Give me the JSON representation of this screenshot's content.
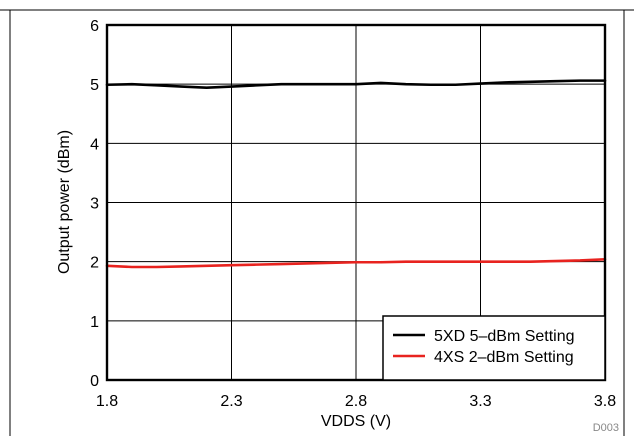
{
  "chart_data": {
    "type": "line",
    "title": "",
    "xlabel": "VDDS (V)",
    "ylabel": "Output power (dBm)",
    "xlim": [
      1.8,
      3.8
    ],
    "ylim": [
      0,
      6
    ],
    "x_ticks": [
      "1.8",
      "2.3",
      "2.8",
      "3.3",
      "3.8"
    ],
    "y_ticks": [
      "0",
      "1",
      "2",
      "3",
      "4",
      "5",
      "6"
    ],
    "grid": true,
    "legend_position": "bottom-right",
    "series": [
      {
        "name": "5XD 5–dBm Setting",
        "color": "#000000",
        "x": [
          1.8,
          1.9,
          2.0,
          2.1,
          2.2,
          2.3,
          2.4,
          2.5,
          2.6,
          2.7,
          2.8,
          2.9,
          3.0,
          3.1,
          3.2,
          3.3,
          3.4,
          3.5,
          3.6,
          3.7,
          3.8
        ],
        "y": [
          4.99,
          5.0,
          4.98,
          4.96,
          4.94,
          4.96,
          4.98,
          5.0,
          5.0,
          5.0,
          5.0,
          5.02,
          5.0,
          4.99,
          4.99,
          5.01,
          5.03,
          5.04,
          5.05,
          5.06,
          5.06
        ]
      },
      {
        "name": "4XS 2–dBm Setting",
        "color": "#e8231f",
        "x": [
          1.8,
          1.9,
          2.0,
          2.1,
          2.2,
          2.3,
          2.4,
          2.5,
          2.6,
          2.7,
          2.8,
          2.9,
          3.0,
          3.1,
          3.2,
          3.3,
          3.4,
          3.5,
          3.6,
          3.7,
          3.8
        ],
        "y": [
          1.93,
          1.91,
          1.91,
          1.92,
          1.93,
          1.94,
          1.95,
          1.96,
          1.97,
          1.98,
          1.99,
          1.99,
          2.0,
          2.0,
          2.0,
          2.0,
          2.0,
          2.0,
          2.01,
          2.02,
          2.04
        ]
      }
    ]
  },
  "figure_id": "D003"
}
